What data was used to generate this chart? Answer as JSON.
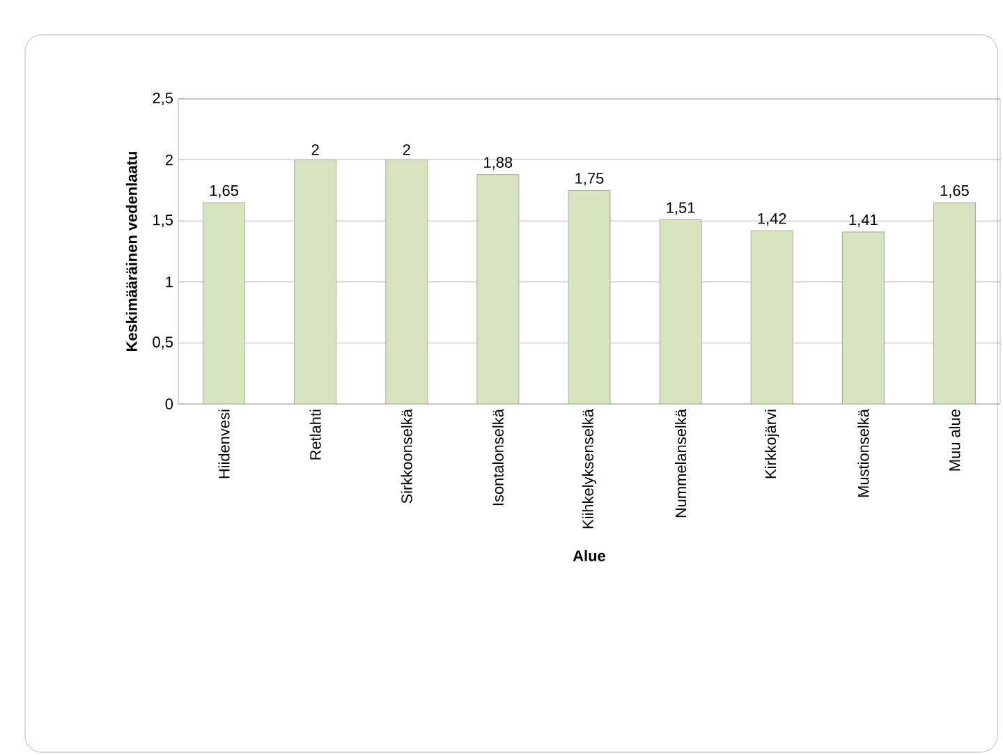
{
  "chart_data": {
    "type": "bar",
    "xlabel": "Alue",
    "ylabel": "Keskimääräinen vedenlaatu",
    "categories": [
      "Hiidenvesi",
      "Retlahti",
      "Sirkkoonselkä",
      "Isontalonselkä",
      "Kiihkelyksenselkä",
      "Nummelanselkä",
      "Kirkkojärvi",
      "Mustionselkä",
      "Muu alue"
    ],
    "values": [
      1.65,
      2,
      2,
      1.88,
      1.75,
      1.51,
      1.42,
      1.41,
      1.65
    ],
    "value_labels": [
      "1,65",
      "2",
      "2",
      "1,88",
      "1,75",
      "1,51",
      "1,42",
      "1,41",
      "1,65"
    ],
    "color": "#d7e4bd",
    "ylim": [
      0,
      2.5
    ],
    "yticks": [
      0,
      {
        "value": 0.5,
        "label": "0,5"
      },
      1,
      {
        "value": 1.5,
        "label": "1,5"
      },
      2,
      {
        "value": 2.5,
        "label": "2,5"
      }
    ],
    "grid": "y"
  }
}
